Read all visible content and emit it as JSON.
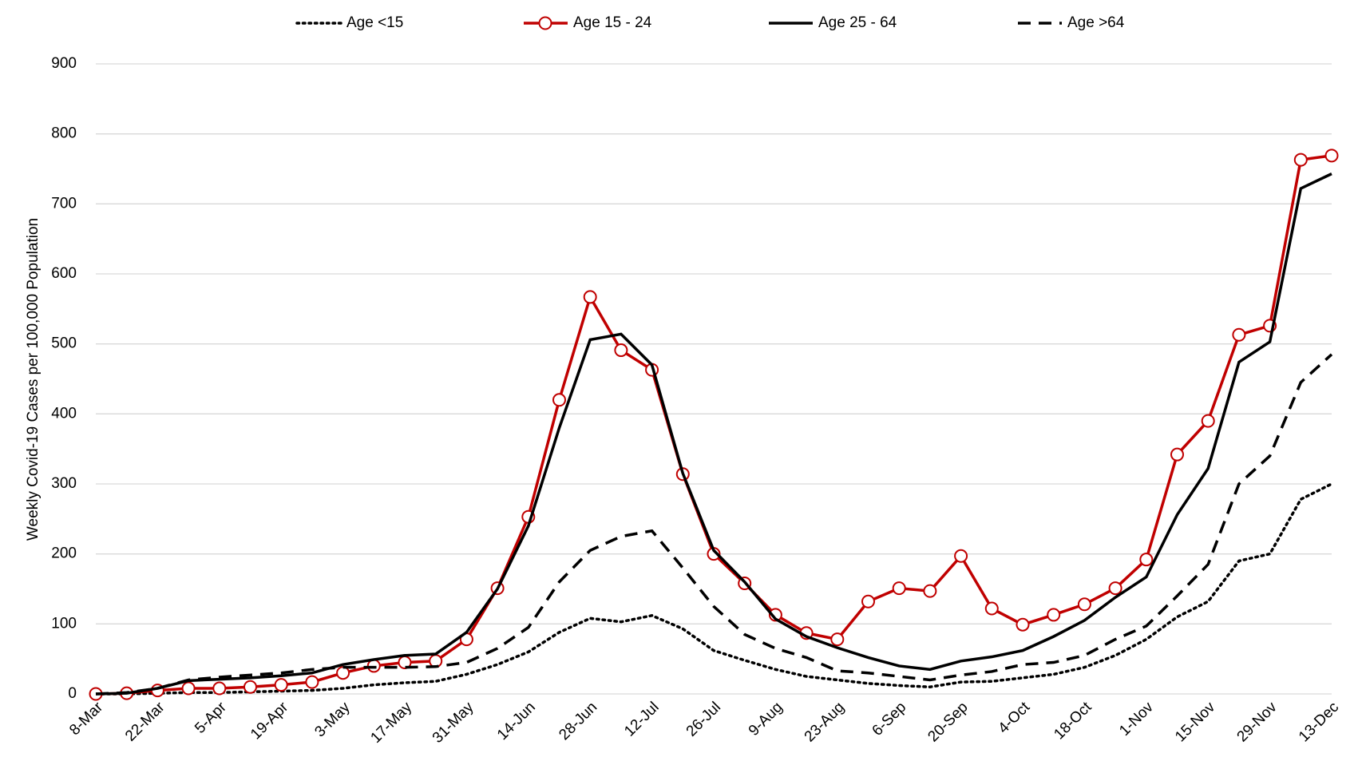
{
  "chart_data": {
    "type": "line",
    "y_axis_label": "Weekly Covid-19 Cases per 100,000 Population",
    "categories": [
      "8-Mar",
      null,
      "22-Mar",
      null,
      "5-Apr",
      null,
      "19-Apr",
      null,
      "3-May",
      null,
      "17-May",
      null,
      "31-May",
      null,
      "14-Jun",
      null,
      "28-Jun",
      null,
      "12-Jul",
      null,
      "26-Jul",
      null,
      "9-Aug",
      null,
      "23-Aug",
      null,
      "6-Sep",
      null,
      "20-Sep",
      null,
      "4-Oct",
      null,
      "18-Oct",
      null,
      "1-Nov",
      null,
      "15-Nov",
      null,
      "29-Nov",
      null,
      "13-Dec"
    ],
    "ylim": [
      0,
      900
    ],
    "yticks": [
      0,
      100,
      200,
      300,
      400,
      500,
      600,
      700,
      800,
      900
    ],
    "grid": true,
    "legend": "top",
    "series": [
      {
        "name": "Age <15",
        "color": "#000000",
        "style": "dotted",
        "markers": false,
        "values": [
          0,
          0,
          1,
          2,
          2,
          3,
          4,
          5,
          8,
          13,
          16,
          18,
          28,
          42,
          60,
          88,
          108,
          103,
          112,
          93,
          62,
          48,
          35,
          25,
          20,
          15,
          12,
          10,
          17,
          18,
          23,
          28,
          38,
          55,
          78,
          110,
          132,
          190,
          200,
          278,
          300
        ]
      },
      {
        "name": "Age 15 - 24",
        "color": "#c00000",
        "style": "solid",
        "markers": true,
        "values": [
          0,
          1,
          5,
          8,
          8,
          10,
          13,
          17,
          30,
          40,
          45,
          47,
          78,
          151,
          253,
          420,
          567,
          491,
          463,
          314,
          200,
          158,
          113,
          87,
          78,
          132,
          151,
          147,
          197,
          122,
          99,
          113,
          128,
          151,
          192,
          342,
          390,
          513,
          526,
          763,
          769
        ]
      },
      {
        "name": "Age 25 - 64",
        "color": "#000000",
        "style": "solid",
        "markers": false,
        "values": [
          0,
          1,
          8,
          19,
          21,
          23,
          26,
          30,
          42,
          49,
          55,
          57,
          88,
          150,
          240,
          380,
          506,
          514,
          470,
          315,
          205,
          160,
          107,
          82,
          66,
          52,
          40,
          35,
          47,
          53,
          62,
          82,
          105,
          138,
          167,
          256,
          322,
          474,
          503,
          722,
          743
        ]
      },
      {
        "name": "Age >64",
        "color": "#000000",
        "style": "dashed",
        "markers": false,
        "values": [
          0,
          2,
          8,
          20,
          24,
          27,
          30,
          35,
          38,
          38,
          38,
          39,
          45,
          65,
          95,
          160,
          205,
          225,
          233,
          180,
          125,
          85,
          65,
          52,
          33,
          30,
          25,
          20,
          27,
          32,
          42,
          45,
          55,
          78,
          97,
          140,
          185,
          300,
          340,
          445,
          485
        ]
      }
    ]
  }
}
